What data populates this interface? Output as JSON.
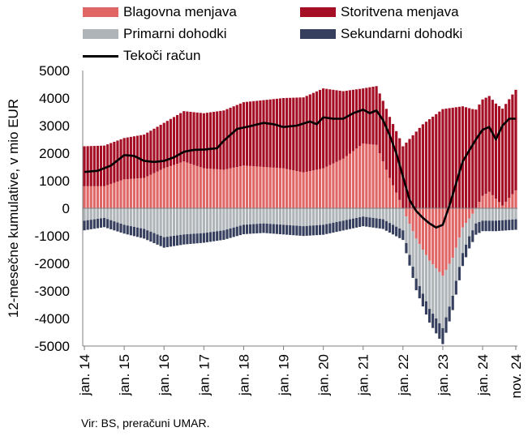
{
  "chart_data": {
    "type": "bar",
    "stacked": true,
    "ylabel": "12-mesečne kumulative, v mio EUR",
    "ylim": [
      -5000,
      5000
    ],
    "yticks": [
      -5000,
      -4000,
      -3000,
      -2000,
      -1000,
      0,
      1000,
      2000,
      3000,
      4000,
      5000
    ],
    "xtick_labels": [
      "jan. 14",
      "jan. 15",
      "jan. 16",
      "jan. 17",
      "jan. 18",
      "jan. 19",
      "jan. 20",
      "jan. 21",
      "jan. 22",
      "jan. 23",
      "jan. 24",
      "nov. 24"
    ],
    "xtick_index": [
      0,
      12,
      24,
      36,
      48,
      60,
      72,
      84,
      96,
      108,
      120,
      130
    ],
    "legend_position": "top",
    "grid": false,
    "period": "monthly, jan. 2014 – nov. 2024 (131 months)",
    "series": [
      {
        "name": "Blagovna menjava",
        "color": "#e06666",
        "knots": [
          [
            0,
            800
          ],
          [
            6,
            800
          ],
          [
            12,
            1050
          ],
          [
            18,
            1100
          ],
          [
            24,
            1450
          ],
          [
            30,
            1700
          ],
          [
            36,
            1450
          ],
          [
            42,
            1400
          ],
          [
            48,
            1550
          ],
          [
            60,
            1450
          ],
          [
            66,
            1300
          ],
          [
            72,
            1450
          ],
          [
            78,
            1800
          ],
          [
            84,
            2350
          ],
          [
            88,
            2300
          ],
          [
            92,
            1100
          ],
          [
            95,
            300
          ],
          [
            97,
            -300
          ],
          [
            100,
            -1100
          ],
          [
            104,
            -1900
          ],
          [
            108,
            -2450
          ],
          [
            111,
            -1800
          ],
          [
            114,
            -700
          ],
          [
            117,
            -200
          ],
          [
            120,
            450
          ],
          [
            122,
            600
          ],
          [
            126,
            100
          ],
          [
            130,
            650
          ]
        ]
      },
      {
        "name": "Storitvena menjava",
        "color": "#a50f25",
        "knots": [
          [
            0,
            1450
          ],
          [
            12,
            1500
          ],
          [
            24,
            1650
          ],
          [
            36,
            2000
          ],
          [
            48,
            2300
          ],
          [
            60,
            2550
          ],
          [
            72,
            2900
          ],
          [
            84,
            2000
          ],
          [
            90,
            2200
          ],
          [
            96,
            2250
          ],
          [
            102,
            3050
          ],
          [
            108,
            3600
          ],
          [
            114,
            3700
          ],
          [
            120,
            3500
          ],
          [
            124,
            3450
          ],
          [
            130,
            3650
          ]
        ]
      },
      {
        "name": "Primarni dohodki",
        "color": "#aeb4b8",
        "knots": [
          [
            0,
            -450
          ],
          [
            6,
            -350
          ],
          [
            12,
            -600
          ],
          [
            18,
            -750
          ],
          [
            24,
            -1050
          ],
          [
            30,
            -950
          ],
          [
            36,
            -900
          ],
          [
            42,
            -800
          ],
          [
            48,
            -600
          ],
          [
            54,
            -550
          ],
          [
            60,
            -600
          ],
          [
            66,
            -650
          ],
          [
            72,
            -600
          ],
          [
            78,
            -450
          ],
          [
            84,
            -300
          ],
          [
            90,
            -400
          ],
          [
            96,
            -800
          ],
          [
            100,
            -1450
          ],
          [
            104,
            -1750
          ],
          [
            108,
            -1900
          ],
          [
            112,
            -1200
          ],
          [
            116,
            -650
          ],
          [
            120,
            -450
          ],
          [
            124,
            -450
          ],
          [
            130,
            -400
          ]
        ]
      },
      {
        "name": "Sekundarni dohodki",
        "color": "#36405e",
        "knots": [
          [
            0,
            -350
          ],
          [
            12,
            -320
          ],
          [
            24,
            -380
          ],
          [
            36,
            -350
          ],
          [
            48,
            -340
          ],
          [
            60,
            -350
          ],
          [
            72,
            -360
          ],
          [
            84,
            -350
          ],
          [
            96,
            -350
          ],
          [
            104,
            -500
          ],
          [
            108,
            -580
          ],
          [
            112,
            -500
          ],
          [
            120,
            -380
          ],
          [
            130,
            -380
          ]
        ]
      },
      {
        "name": "Tekoči račun",
        "type": "line",
        "color": "#000000",
        "knots": [
          [
            0,
            1320
          ],
          [
            4,
            1360
          ],
          [
            8,
            1550
          ],
          [
            12,
            1930
          ],
          [
            15,
            1900
          ],
          [
            18,
            1720
          ],
          [
            21,
            1680
          ],
          [
            24,
            1720
          ],
          [
            27,
            1850
          ],
          [
            30,
            2050
          ],
          [
            33,
            2120
          ],
          [
            36,
            2130
          ],
          [
            40,
            2180
          ],
          [
            42,
            2450
          ],
          [
            46,
            2880
          ],
          [
            50,
            2980
          ],
          [
            54,
            3100
          ],
          [
            57,
            3050
          ],
          [
            60,
            2950
          ],
          [
            64,
            3000
          ],
          [
            68,
            3150
          ],
          [
            70,
            3050
          ],
          [
            72,
            3300
          ],
          [
            75,
            3250
          ],
          [
            78,
            3250
          ],
          [
            81,
            3450
          ],
          [
            84,
            3580
          ],
          [
            86,
            3450
          ],
          [
            88,
            3550
          ],
          [
            90,
            3200
          ],
          [
            92,
            2650
          ],
          [
            94,
            2000
          ],
          [
            96,
            1150
          ],
          [
            98,
            300
          ],
          [
            100,
            -100
          ],
          [
            102,
            -350
          ],
          [
            104,
            -550
          ],
          [
            106,
            -700
          ],
          [
            108,
            -600
          ],
          [
            110,
            100
          ],
          [
            112,
            900
          ],
          [
            114,
            1700
          ],
          [
            116,
            2100
          ],
          [
            118,
            2500
          ],
          [
            120,
            2850
          ],
          [
            122,
            2950
          ],
          [
            124,
            2500
          ],
          [
            126,
            3000
          ],
          [
            128,
            3250
          ],
          [
            130,
            3250
          ]
        ]
      }
    ]
  },
  "source": "Vir: BS, preračuni UMAR."
}
